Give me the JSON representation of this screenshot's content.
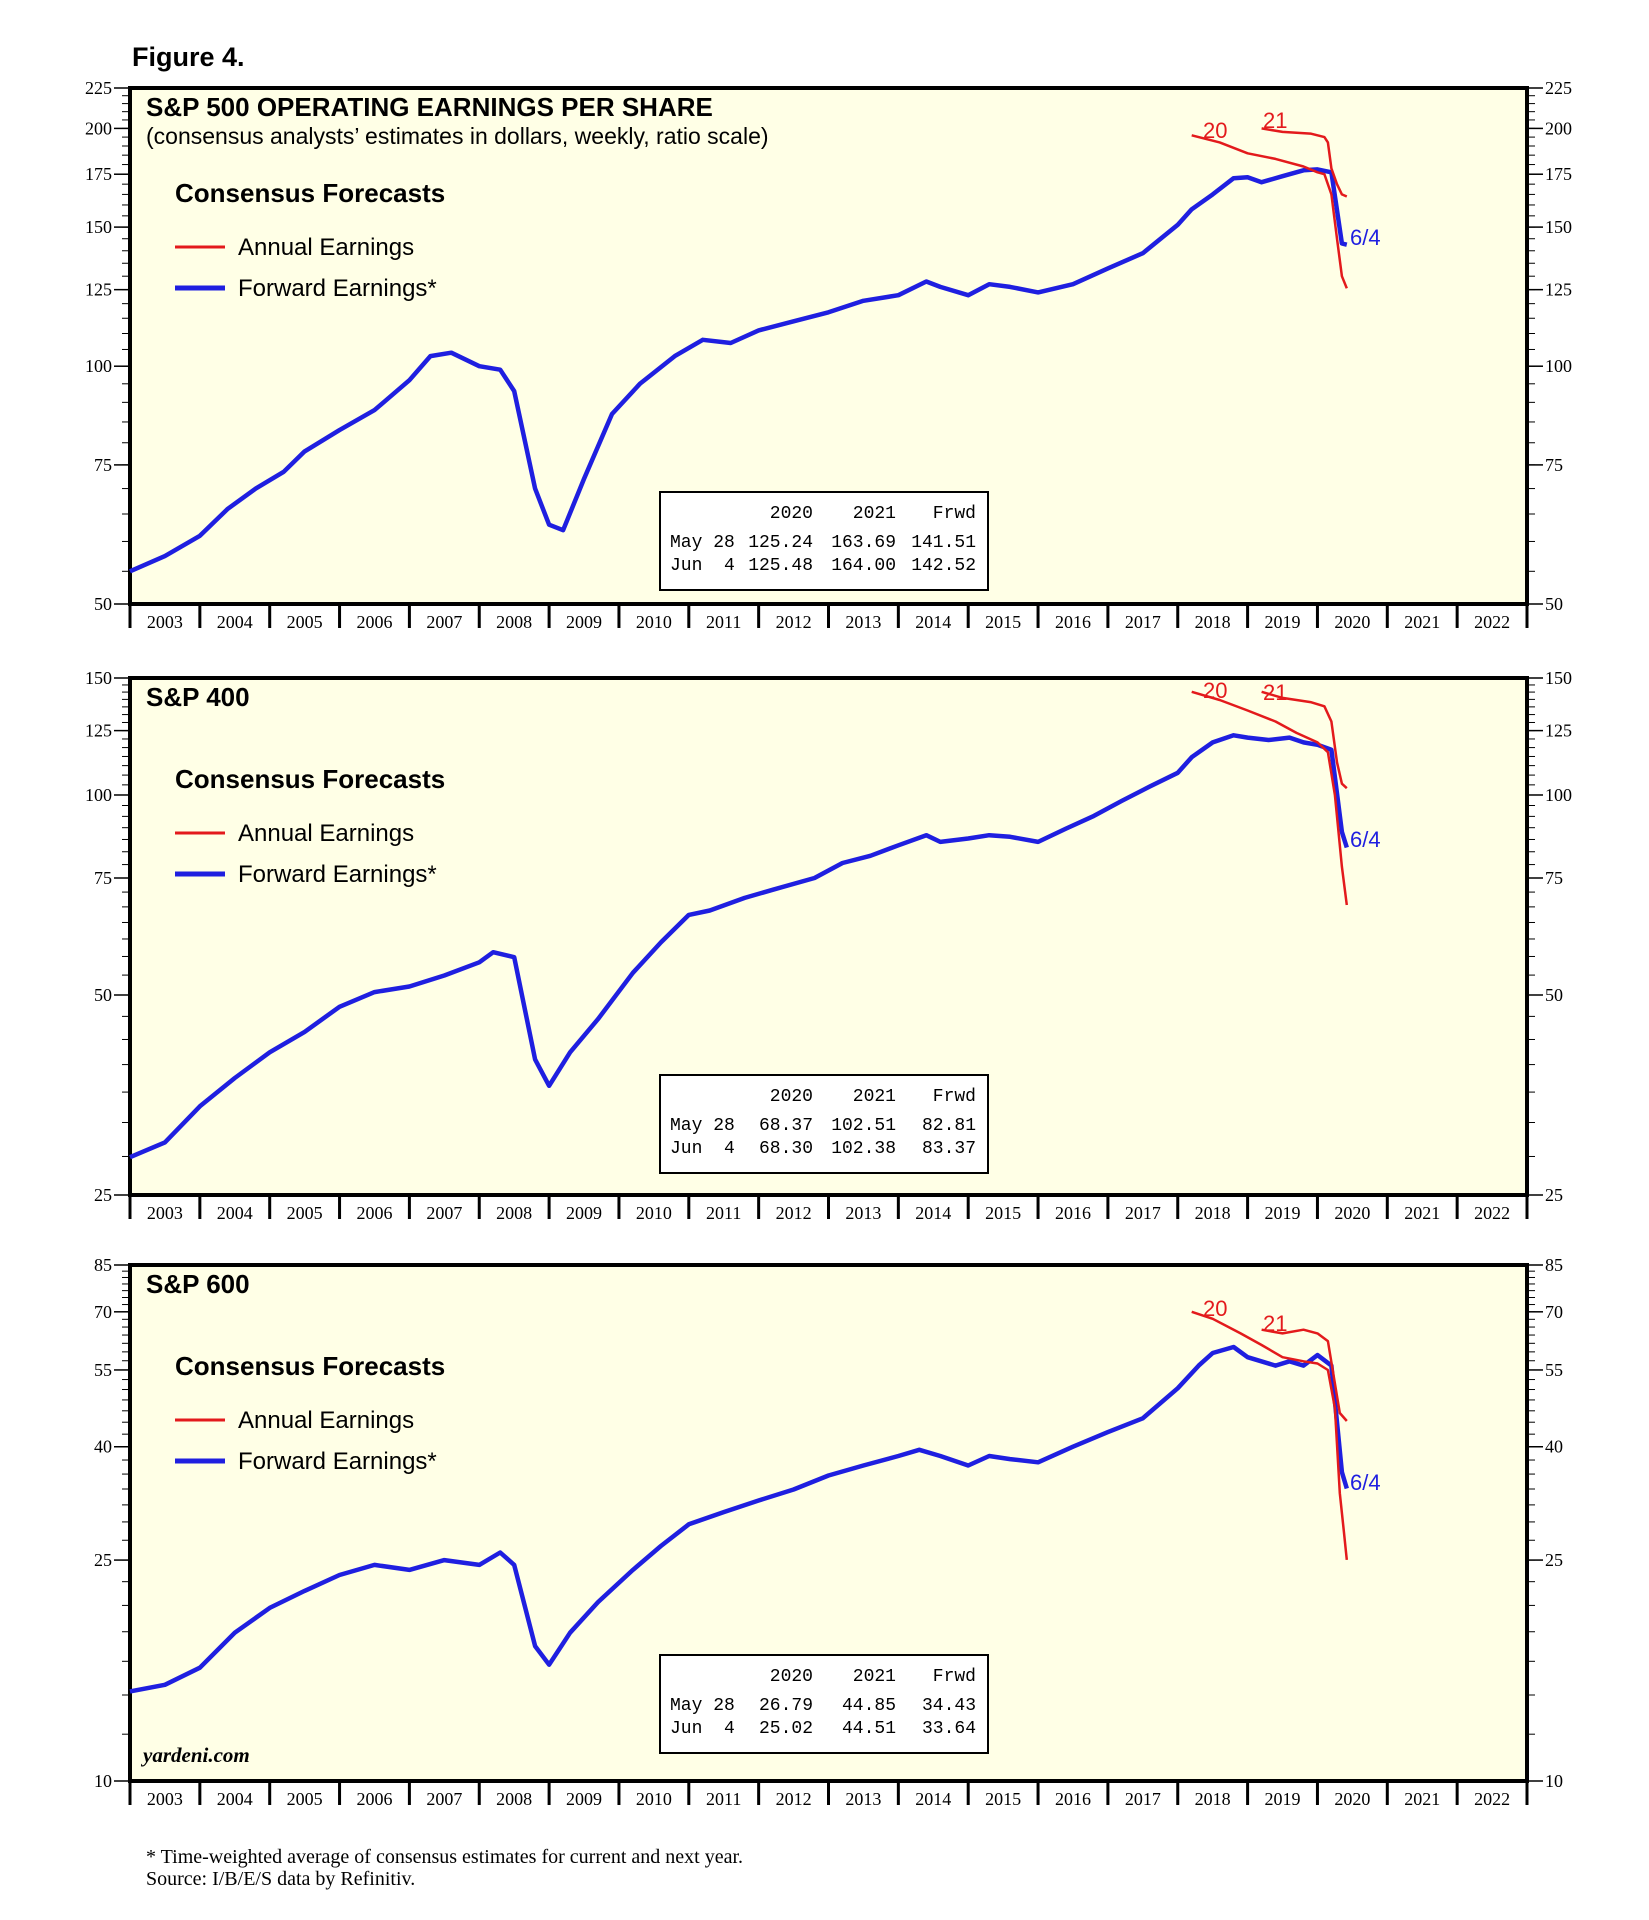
{
  "figure_title": "Figure 4.",
  "footnote": [
    "* Time-weighted average of consensus estimates for current and next year.",
    "Source: I/B/E/S data by Refinitiv."
  ],
  "watermark": "yardeni.com",
  "colors": {
    "plot_bg": "#ffffe6",
    "annual": "#e31a1c",
    "forward": "#1f1fe0",
    "frame": "#000000"
  },
  "chart_data": [
    {
      "type": "line",
      "title": "S&P 500 OPERATING EARNINGS PER SHARE",
      "subtitle": "(consensus analysts’ estimates in dollars, weekly, ratio scale)",
      "log_scale": true,
      "ylim": [
        50,
        225
      ],
      "yticks": [
        50,
        75,
        100,
        125,
        150,
        175,
        200,
        225
      ],
      "xlim": [
        2003,
        2023
      ],
      "x_tick_labels": [
        "2003",
        "2004",
        "2005",
        "2006",
        "2007",
        "2008",
        "2009",
        "2010",
        "2011",
        "2012",
        "2013",
        "2014",
        "2015",
        "2016",
        "2017",
        "2018",
        "2019",
        "2020",
        "2021",
        "2022"
      ],
      "legend": {
        "title": "Consensus Forecasts",
        "entries": [
          "Annual Earnings",
          "Forward Earnings*"
        ],
        "position": "top-left"
      },
      "annotations": [
        "20",
        "21",
        "6/4"
      ],
      "table": {
        "columns": [
          "2020",
          "2021",
          "Frwd"
        ],
        "rows": [
          {
            "label": "May 28",
            "values": [
              "125.24",
              "163.69",
              "141.51"
            ]
          },
          {
            "label": "Jun  4",
            "values": [
              "125.48",
              "164.00",
              "142.52"
            ]
          }
        ]
      },
      "series": [
        {
          "name": "Forward Earnings*",
          "x": [
            2003.0,
            2003.5,
            2004.0,
            2004.4,
            2004.8,
            2005.2,
            2005.5,
            2006.0,
            2006.5,
            2007.0,
            2007.3,
            2007.6,
            2008.0,
            2008.3,
            2008.5,
            2008.8,
            2009.0,
            2009.2,
            2009.5,
            2009.9,
            2010.3,
            2010.8,
            2011.2,
            2011.6,
            2012.0,
            2012.5,
            2013.0,
            2013.5,
            2014.0,
            2014.4,
            2014.6,
            2015.0,
            2015.3,
            2015.6,
            2016.0,
            2016.5,
            2017.0,
            2017.5,
            2018.0,
            2018.2,
            2018.5,
            2018.8,
            2019.0,
            2019.2,
            2019.5,
            2019.8,
            2020.0,
            2020.2,
            2020.35,
            2020.42
          ],
          "values": [
            55,
            57.5,
            61,
            66,
            70,
            73.5,
            78,
            83,
            88,
            96,
            103,
            104,
            100,
            99,
            93,
            70,
            63,
            62,
            72,
            87,
            95,
            103,
            108,
            107,
            111,
            114,
            117,
            121,
            123,
            128,
            126,
            123,
            127,
            126,
            124,
            127,
            133,
            139,
            151,
            158,
            165,
            173,
            173.5,
            171,
            174,
            177,
            177.5,
            176,
            143,
            142.5
          ]
        },
        {
          "name": "2020 Annual Earnings",
          "x": [
            2018.2,
            2018.6,
            2019.0,
            2019.4,
            2019.8,
            2020.0,
            2020.1,
            2020.2,
            2020.28,
            2020.35,
            2020.42
          ],
          "values": [
            196,
            192,
            186,
            183,
            179,
            176,
            175,
            165,
            145,
            130,
            125.48
          ]
        },
        {
          "name": "2021 Annual Earnings",
          "x": [
            2019.2,
            2019.5,
            2019.9,
            2020.1,
            2020.15,
            2020.2,
            2020.28,
            2020.35,
            2020.42
          ],
          "values": [
            200,
            198,
            197,
            195,
            192,
            178,
            170,
            165,
            164.0
          ]
        }
      ]
    },
    {
      "type": "line",
      "title": "S&P 400",
      "subtitle": "",
      "log_scale": true,
      "ylim": [
        25,
        150
      ],
      "yticks": [
        25,
        50,
        75,
        100,
        125,
        150
      ],
      "xlim": [
        2003,
        2023
      ],
      "x_tick_labels": [
        "2003",
        "2004",
        "2005",
        "2006",
        "2007",
        "2008",
        "2009",
        "2010",
        "2011",
        "2012",
        "2013",
        "2014",
        "2015",
        "2016",
        "2017",
        "2018",
        "2019",
        "2020",
        "2021",
        "2022"
      ],
      "legend": {
        "title": "Consensus Forecasts",
        "entries": [
          "Annual Earnings",
          "Forward Earnings*"
        ],
        "position": "top-left"
      },
      "annotations": [
        "20",
        "21",
        "6/4"
      ],
      "table": {
        "columns": [
          "2020",
          "2021",
          "Frwd"
        ],
        "rows": [
          {
            "label": "May 28",
            "values": [
              "68.37",
              "102.51",
              "82.81"
            ]
          },
          {
            "label": "Jun  4",
            "values": [
              "68.30",
              "102.38",
              "83.37"
            ]
          }
        ]
      },
      "series": [
        {
          "name": "Forward Earnings*",
          "x": [
            2003.0,
            2003.5,
            2004.0,
            2004.5,
            2005.0,
            2005.5,
            2006.0,
            2006.5,
            2007.0,
            2007.5,
            2008.0,
            2008.2,
            2008.5,
            2008.8,
            2009.0,
            2009.3,
            2009.7,
            2010.2,
            2010.6,
            2011.0,
            2011.3,
            2011.8,
            2012.2,
            2012.8,
            2013.2,
            2013.6,
            2014.0,
            2014.4,
            2014.6,
            2015.0,
            2015.3,
            2015.6,
            2016.0,
            2016.4,
            2016.8,
            2017.2,
            2017.6,
            2018.0,
            2018.2,
            2018.5,
            2018.8,
            2019.0,
            2019.3,
            2019.6,
            2019.8,
            2020.0,
            2020.2,
            2020.35,
            2020.42
          ],
          "values": [
            28.5,
            30,
            34,
            37.5,
            41,
            44,
            48,
            50.5,
            51.5,
            53.5,
            56,
            58,
            57,
            40,
            36.5,
            41,
            46,
            54,
            60,
            66,
            67,
            70,
            72,
            75,
            79,
            81,
            84,
            87,
            85,
            86,
            87,
            86.5,
            85,
            89,
            93,
            98,
            103,
            108,
            114,
            120,
            123,
            122,
            121,
            122,
            120,
            119,
            117,
            88,
            83.37
          ]
        },
        {
          "name": "2020 Annual Earnings",
          "x": [
            2018.2,
            2018.6,
            2019.0,
            2019.4,
            2019.7,
            2020.0,
            2020.15,
            2020.25,
            2020.35,
            2020.42
          ],
          "values": [
            143,
            139,
            134,
            129,
            124,
            120,
            116,
            100,
            78,
            68.3
          ]
        },
        {
          "name": "2021 Annual Earnings",
          "x": [
            2019.2,
            2019.5,
            2019.9,
            2020.1,
            2020.2,
            2020.28,
            2020.35,
            2020.42
          ],
          "values": [
            143,
            140,
            138,
            136,
            129,
            112,
            104,
            102.38
          ]
        }
      ]
    },
    {
      "type": "line",
      "title": "S&P 600",
      "subtitle": "",
      "log_scale": true,
      "ylim": [
        10,
        85
      ],
      "yticks": [
        10,
        25,
        40,
        55,
        70,
        85
      ],
      "xlim": [
        2003,
        2023
      ],
      "x_tick_labels": [
        "2003",
        "2004",
        "2005",
        "2006",
        "2007",
        "2008",
        "2009",
        "2010",
        "2011",
        "2012",
        "2013",
        "2014",
        "2015",
        "2016",
        "2017",
        "2018",
        "2019",
        "2020",
        "2021",
        "2022"
      ],
      "legend": {
        "title": "Consensus Forecasts",
        "entries": [
          "Annual Earnings",
          "Forward Earnings*"
        ],
        "position": "top-left"
      },
      "annotations": [
        "20",
        "21",
        "6/4"
      ],
      "table": {
        "columns": [
          "2020",
          "2021",
          "Frwd"
        ],
        "rows": [
          {
            "label": "May 28",
            "values": [
              "26.79",
              "44.85",
              "34.43"
            ]
          },
          {
            "label": "Jun  4",
            "values": [
              "25.02",
              "44.51",
              "33.64"
            ]
          }
        ]
      },
      "series": [
        {
          "name": "Forward Earnings*",
          "x": [
            2003.0,
            2003.5,
            2004.0,
            2004.5,
            2005.0,
            2005.5,
            2006.0,
            2006.5,
            2007.0,
            2007.5,
            2008.0,
            2008.3,
            2008.5,
            2008.8,
            2009.0,
            2009.3,
            2009.7,
            2010.2,
            2010.6,
            2011.0,
            2011.5,
            2012.0,
            2012.5,
            2013.0,
            2013.5,
            2014.0,
            2014.3,
            2014.6,
            2015.0,
            2015.3,
            2015.6,
            2016.0,
            2016.5,
            2017.0,
            2017.5,
            2018.0,
            2018.3,
            2018.5,
            2018.8,
            2019.0,
            2019.4,
            2019.6,
            2019.8,
            2020.0,
            2020.2,
            2020.35,
            2020.42
          ],
          "values": [
            14.5,
            14.9,
            16,
            18.5,
            20.5,
            22,
            23.5,
            24.5,
            24,
            25,
            24.5,
            25.8,
            24.5,
            17.5,
            16.2,
            18.5,
            21,
            24,
            26.5,
            29,
            30.5,
            32,
            33.5,
            35.5,
            37,
            38.5,
            39.5,
            38.5,
            37,
            38.5,
            38,
            37.5,
            40,
            42.5,
            45,
            51,
            56,
            59,
            60.5,
            58,
            56,
            57,
            56,
            58.5,
            56,
            36,
            33.64
          ]
        },
        {
          "name": "2020 Annual Earnings",
          "x": [
            2018.2,
            2018.5,
            2018.9,
            2019.2,
            2019.5,
            2019.8,
            2020.0,
            2020.15,
            2020.25,
            2020.32,
            2020.38,
            2020.42
          ],
          "values": [
            70,
            68,
            64,
            61,
            58,
            57,
            56.5,
            55,
            47,
            33,
            28,
            25.02
          ]
        },
        {
          "name": "2021 Annual Earnings",
          "x": [
            2019.2,
            2019.5,
            2019.8,
            2020.0,
            2020.15,
            2020.25,
            2020.32,
            2020.42
          ],
          "values": [
            65,
            64,
            65,
            64,
            62,
            52,
            46,
            44.51
          ]
        }
      ]
    }
  ]
}
